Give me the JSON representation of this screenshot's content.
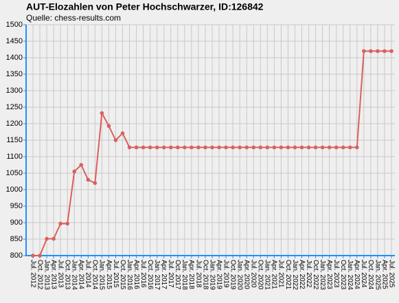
{
  "chart_data": {
    "type": "line",
    "title": "AUT-Elozahlen von Peter Hochschwarzer, ID:126842",
    "subtitle": "Quelle: chess-results.com",
    "categories": [
      "Jul. 2012",
      "Oct. 2012",
      "Jan. 2013",
      "Apr. 2013",
      "Jul. 2013",
      "Oct. 2013",
      "Jan. 2014",
      "Apr. 2014",
      "Jul. 2014",
      "Oct. 2014",
      "Jan. 2015",
      "Apr. 2015",
      "Jul. 2015",
      "Oct. 2015",
      "Jan. 2016",
      "Apr. 2016",
      "Jul. 2016",
      "Oct. 2016",
      "Jan. 2017",
      "Apr. 2017",
      "Jul. 2017",
      "Oct. 2017",
      "Jan. 2018",
      "Apr. 2018",
      "Jul. 2018",
      "Oct. 2018",
      "Jan. 2019",
      "Apr. 2019",
      "Jul. 2019",
      "Oct. 2019",
      "Jan. 2020",
      "Apr. 2020",
      "Jul. 2020",
      "Oct. 2020",
      "Jan. 2021",
      "Apr. 2021",
      "Jul. 2021",
      "Oct. 2021",
      "Jan. 2022",
      "Apr. 2022",
      "Jul. 2022",
      "Oct. 2022",
      "Jan. 2023",
      "Apr. 2023",
      "Jul. 2023",
      "Oct. 2023",
      "Jan. 2024",
      "Apr. 2024",
      "Jul. 2024",
      "Oct. 2024",
      "Jan. 2025",
      "Apr. 2025",
      "Jul. 2025"
    ],
    "series": [
      {
        "color": "#d9605e",
        "values": [
          800,
          800,
          851,
          851,
          897,
          897,
          1055,
          1075,
          1030,
          1020,
          1232,
          1193,
          1150,
          1171,
          1128,
          1128,
          1128,
          1128,
          1128,
          1128,
          1128,
          1128,
          1128,
          1128,
          1128,
          1128,
          1128,
          1128,
          1128,
          1128,
          1128,
          1128,
          1128,
          1128,
          1128,
          1128,
          1128,
          1128,
          1128,
          1128,
          1128,
          1128,
          1128,
          1128,
          1128,
          1128,
          1128,
          1128,
          1420,
          1420,
          1420,
          1420,
          1420
        ]
      }
    ],
    "ylim": [
      800,
      1500
    ],
    "yticks": [
      800,
      850,
      900,
      950,
      1000,
      1050,
      1100,
      1150,
      1200,
      1250,
      1300,
      1350,
      1400,
      1450,
      1500
    ],
    "grid": true
  }
}
